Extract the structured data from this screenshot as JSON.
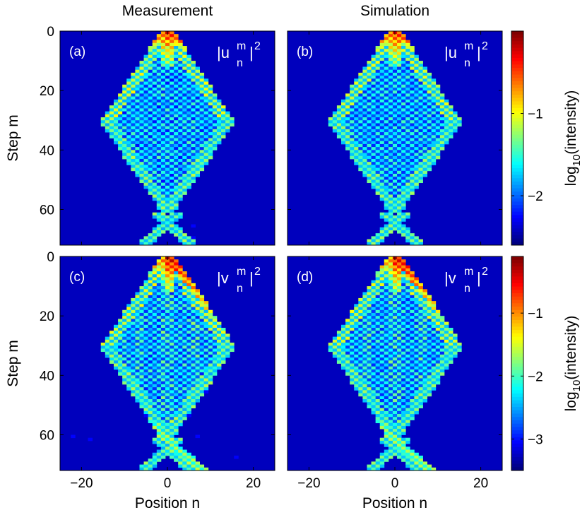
{
  "figure": {
    "col_titles": [
      "Measurement",
      "Simulation"
    ],
    "colorbar_label_top": "log10(intensity)",
    "colorbar_label_bottom": "log10(intensity)"
  },
  "chart_data": [
    {
      "type": "heatmap",
      "id": "a",
      "panel_label": "(a)",
      "column": "Measurement",
      "quantity": "|u_n^m|^2",
      "quantity_base": "u",
      "xlabel": "",
      "ylabel": "Step m",
      "xlim": [
        -25,
        25
      ],
      "ylim": [
        0,
        72
      ],
      "xticks": [
        -20,
        0,
        20
      ],
      "yticks": [
        0,
        20,
        40,
        60
      ],
      "color_scale": "log10",
      "clim": [
        -2.6,
        0
      ]
    },
    {
      "type": "heatmap",
      "id": "b",
      "panel_label": "(b)",
      "column": "Simulation",
      "quantity": "|u_n^m|^2",
      "quantity_base": "u",
      "xlabel": "",
      "ylabel": "",
      "xlim": [
        -25,
        25
      ],
      "ylim": [
        0,
        72
      ],
      "xticks": [
        -20,
        0,
        20
      ],
      "yticks": [
        0,
        20,
        40,
        60
      ],
      "color_scale": "log10",
      "clim": [
        -2.6,
        0
      ],
      "colorbar": {
        "ticks": [
          -1,
          -2
        ],
        "tick_labels": [
          "−1",
          "−2"
        ],
        "label": "log10(intensity)"
      }
    },
    {
      "type": "heatmap",
      "id": "c",
      "panel_label": "(c)",
      "column": "Measurement",
      "quantity": "|v_n^m|^2",
      "quantity_base": "v",
      "xlabel": "Position n",
      "ylabel": "Step m",
      "xlim": [
        -25,
        25
      ],
      "ylim": [
        0,
        72
      ],
      "xticks": [
        -20,
        0,
        20
      ],
      "yticks": [
        0,
        20,
        40,
        60
      ],
      "color_scale": "log10",
      "clim": [
        -3.5,
        -0.1
      ]
    },
    {
      "type": "heatmap",
      "id": "d",
      "panel_label": "(d)",
      "column": "Simulation",
      "quantity": "|v_n^m|^2",
      "quantity_base": "v",
      "xlabel": "Position n",
      "ylabel": "",
      "xlim": [
        -25,
        25
      ],
      "ylim": [
        0,
        72
      ],
      "xticks": [
        -20,
        0,
        20
      ],
      "yticks": [
        0,
        20,
        40,
        60
      ],
      "color_scale": "log10",
      "clim": [
        -3.5,
        -0.1
      ],
      "colorbar": {
        "ticks": [
          -1,
          -2,
          -3
        ],
        "tick_labels": [
          "−1",
          "−2",
          "−3"
        ],
        "label": "log10(intensity)"
      }
    }
  ]
}
